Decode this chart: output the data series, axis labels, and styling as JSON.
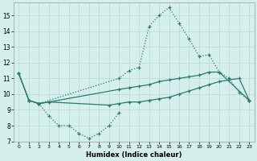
{
  "xlabel": "Humidex (Indice chaleur)",
  "xlim": [
    -0.5,
    23.5
  ],
  "ylim": [
    7,
    15.8
  ],
  "yticks": [
    7,
    8,
    9,
    10,
    11,
    12,
    13,
    14,
    15
  ],
  "xticks": [
    0,
    1,
    2,
    3,
    4,
    5,
    6,
    7,
    8,
    9,
    10,
    11,
    12,
    13,
    14,
    15,
    16,
    17,
    18,
    19,
    20,
    21,
    22,
    23
  ],
  "bg_color": "#d4efec",
  "grid_color": "#b8d8d4",
  "line_color": "#2a7a6a",
  "s1_x": [
    0,
    1,
    2,
    10,
    11,
    12,
    13,
    14,
    15,
    16,
    17,
    18,
    19,
    20,
    21,
    22,
    23
  ],
  "s1_y": [
    11.3,
    9.6,
    9.4,
    11.0,
    11.5,
    11.7,
    14.3,
    15.0,
    15.5,
    14.5,
    13.5,
    12.4,
    12.5,
    11.4,
    11.0,
    10.1,
    9.6
  ],
  "s2_x": [
    0,
    1,
    2,
    3,
    10,
    11,
    12,
    13,
    14,
    15,
    16,
    17,
    18,
    19,
    20,
    23
  ],
  "s2_y": [
    11.3,
    9.6,
    9.4,
    9.5,
    10.3,
    10.4,
    10.5,
    10.6,
    10.8,
    10.9,
    11.0,
    11.1,
    11.2,
    11.4,
    11.4,
    9.6
  ],
  "s3_x": [
    0,
    1,
    2,
    3,
    9,
    10,
    11,
    12,
    13,
    14,
    15,
    16,
    17,
    18,
    19,
    20,
    21,
    22,
    23
  ],
  "s3_y": [
    11.3,
    9.6,
    9.4,
    9.5,
    9.3,
    9.4,
    9.5,
    9.5,
    9.6,
    9.7,
    9.8,
    10.0,
    10.2,
    10.4,
    10.6,
    10.8,
    10.9,
    11.0,
    9.6
  ],
  "s4_x": [
    1,
    2,
    3,
    4,
    5,
    6,
    7,
    8,
    9,
    10
  ],
  "s4_y": [
    9.6,
    9.4,
    8.6,
    8.0,
    8.0,
    7.5,
    7.2,
    7.5,
    8.0,
    8.8
  ]
}
